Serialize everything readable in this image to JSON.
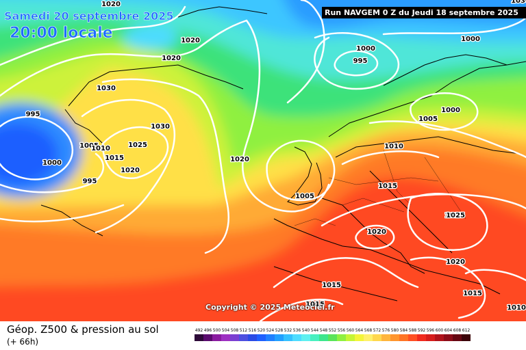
{
  "header": {
    "date": "Samedi 20 septembre 2025",
    "local_time": "20:00 locale",
    "run": "Run NAVGEM 0 Z du Jeudi 18 septembre 2025"
  },
  "copyright": "Copyright © 2025 Meteociel.fr",
  "footer": {
    "title": "Géop. Z500 & pression au sol",
    "subtitle": "(+ 66h)"
  },
  "pressure_labels": [
    "1020",
    "1020",
    "1020",
    "1000",
    "995",
    "1000",
    "1030",
    "995",
    "1030",
    "1000",
    "1005",
    "1005",
    "1010",
    "1015",
    "1015",
    "1000",
    "1025",
    "1020",
    "1010",
    "1030",
    "1025",
    "1020",
    "995",
    "1020",
    "1005",
    "1015",
    "1025",
    "1020",
    "1020",
    "1015",
    "1015",
    "1015",
    "1010"
  ],
  "scale": {
    "values": [
      "492",
      "496",
      "500",
      "504",
      "508",
      "512",
      "516",
      "520",
      "524",
      "528",
      "532",
      "536",
      "540",
      "544",
      "548",
      "552",
      "556",
      "560",
      "564",
      "568",
      "572",
      "576",
      "580",
      "584",
      "588",
      "592",
      "596",
      "600",
      "604",
      "608",
      "612"
    ],
    "colors": [
      "#2d0a38",
      "#5a0c6e",
      "#8a1ba0",
      "#9d2fc2",
      "#7a3fd2",
      "#4d4fe0",
      "#2a4be6",
      "#1e60ff",
      "#1f80ff",
      "#22a0ff",
      "#35c1ff",
      "#4edcff",
      "#5ef0f0",
      "#48f0c0",
      "#3ce68c",
      "#5ae45a",
      "#8ff041",
      "#c6f536",
      "#f3f53a",
      "#fff06a",
      "#ffd74e",
      "#ffb53c",
      "#ff952d",
      "#ff7425",
      "#ff4f22",
      "#f12a1d",
      "#d61c1b",
      "#b0121a",
      "#8c0c18",
      "#660712",
      "#3b0409"
    ]
  },
  "colors": {
    "scale_green": "#5ae45a",
    "scale_cyan": "#4edcff",
    "isobar": "#ffffff",
    "header_text": "#1d6dff"
  }
}
